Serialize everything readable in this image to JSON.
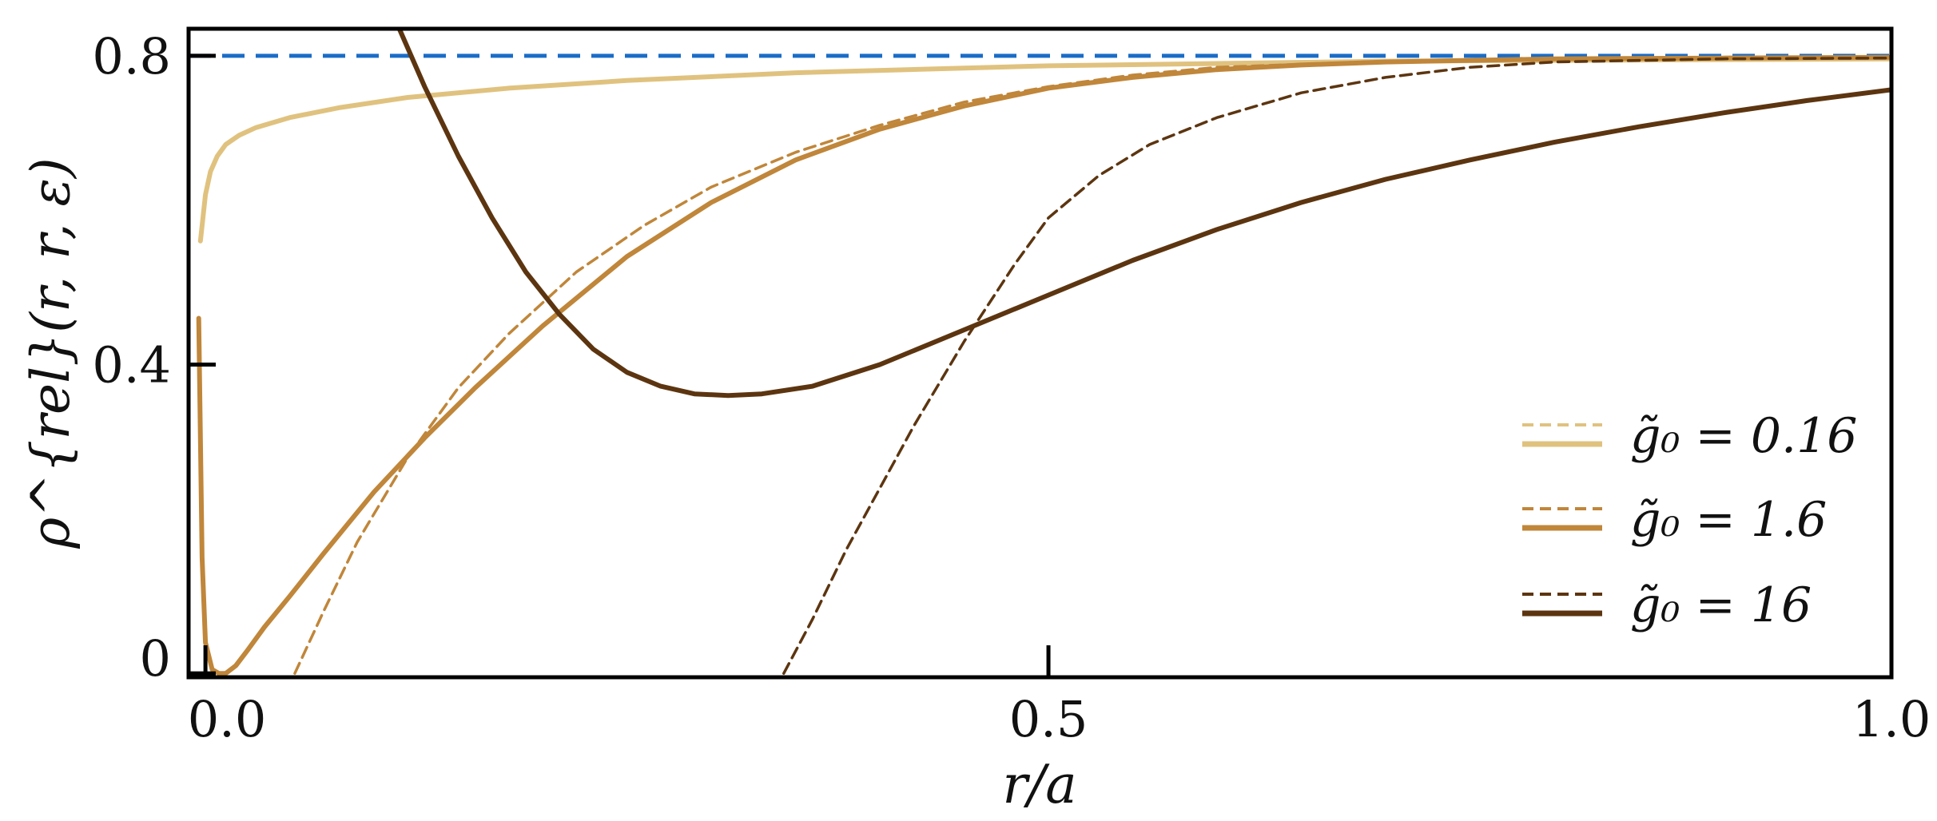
{
  "chart_data": {
    "type": "line",
    "xlabel": "r/a",
    "ylabel": "ρ^{rel}(r, r, ε)",
    "xlim": [
      -0.01,
      1.0
    ],
    "ylim": [
      -0.005,
      0.835
    ],
    "x_ticks": [
      {
        "value": 0.0,
        "label": "0.0"
      },
      {
        "value": 0.5,
        "label": "0.5"
      },
      {
        "value": 1.0,
        "label": "1.0"
      }
    ],
    "y_ticks": [
      {
        "value": 0.0,
        "label": "0"
      },
      {
        "value": 0.4,
        "label": "0.4"
      },
      {
        "value": 0.8,
        "label": "0.8"
      }
    ],
    "grid": false,
    "legend_position": "lower-right",
    "legend": [
      {
        "label": "g̃₀ = 0.16",
        "color": "#e0c27f"
      },
      {
        "label": "g̃₀ = 1.6",
        "color": "#c0863a"
      },
      {
        "label": "g̃₀ = 16",
        "color": "#5c3510"
      }
    ],
    "reference_line": {
      "y": 0.8,
      "color": "#1a6cc7",
      "style": "dashed"
    },
    "series": [
      {
        "legend_index": 0,
        "style": "dashed",
        "color": "#e0c27f",
        "x": [
          -0.003,
          0.0,
          0.003,
          0.007,
          0.012,
          0.02,
          0.03,
          0.05,
          0.08,
          0.12,
          0.18,
          0.25,
          0.35,
          0.5,
          0.7,
          1.0
        ],
        "y": [
          0.56,
          0.62,
          0.65,
          0.67,
          0.685,
          0.697,
          0.707,
          0.72,
          0.733,
          0.746,
          0.758,
          0.768,
          0.778,
          0.787,
          0.793,
          0.796
        ]
      },
      {
        "legend_index": 0,
        "style": "solid",
        "color": "#e0c27f",
        "x": [
          -0.003,
          0.0,
          0.003,
          0.007,
          0.012,
          0.02,
          0.03,
          0.05,
          0.08,
          0.12,
          0.18,
          0.25,
          0.35,
          0.5,
          0.7,
          1.0
        ],
        "y": [
          0.56,
          0.62,
          0.65,
          0.67,
          0.685,
          0.697,
          0.707,
          0.72,
          0.733,
          0.746,
          0.758,
          0.768,
          0.778,
          0.787,
          0.793,
          0.796
        ]
      },
      {
        "legend_index": 1,
        "style": "dashed",
        "color": "#c0863a",
        "x": [
          0.053,
          0.07,
          0.09,
          0.12,
          0.15,
          0.18,
          0.22,
          0.26,
          0.3,
          0.35,
          0.4,
          0.45,
          0.5,
          0.55,
          0.6,
          0.7,
          0.8,
          1.0
        ],
        "y": [
          0.0,
          0.08,
          0.17,
          0.28,
          0.37,
          0.44,
          0.52,
          0.58,
          0.63,
          0.675,
          0.71,
          0.74,
          0.76,
          0.775,
          0.785,
          0.793,
          0.796,
          0.797
        ]
      },
      {
        "legend_index": 1,
        "style": "solid",
        "color": "#c0863a",
        "x": [
          -0.004,
          -0.002,
          0.0,
          0.004,
          0.008,
          0.012,
          0.018,
          0.025,
          0.035,
          0.05,
          0.07,
          0.1,
          0.13,
          0.16,
          0.2,
          0.25,
          0.3,
          0.35,
          0.4,
          0.45,
          0.5,
          0.55,
          0.6,
          0.65,
          0.7,
          0.8,
          0.9,
          1.0
        ],
        "y": [
          0.46,
          0.15,
          0.04,
          0.005,
          0.0,
          0.0,
          0.01,
          0.03,
          0.06,
          0.1,
          0.155,
          0.235,
          0.305,
          0.37,
          0.45,
          0.54,
          0.61,
          0.665,
          0.705,
          0.735,
          0.758,
          0.772,
          0.782,
          0.788,
          0.792,
          0.796,
          0.797,
          0.798
        ]
      },
      {
        "legend_index": 2,
        "style": "dashed",
        "color": "#5c3510",
        "x": [
          0.343,
          0.36,
          0.38,
          0.4,
          0.42,
          0.45,
          0.48,
          0.5,
          0.53,
          0.56,
          0.6,
          0.65,
          0.7,
          0.75,
          0.8,
          0.9,
          1.0
        ],
        "y": [
          0.0,
          0.07,
          0.16,
          0.24,
          0.32,
          0.43,
          0.53,
          0.59,
          0.645,
          0.685,
          0.72,
          0.752,
          0.772,
          0.785,
          0.792,
          0.796,
          0.797
        ]
      },
      {
        "legend_index": 2,
        "style": "solid",
        "color": "#5c3510",
        "x": [
          0.115,
          0.13,
          0.15,
          0.17,
          0.19,
          0.21,
          0.23,
          0.25,
          0.27,
          0.29,
          0.31,
          0.33,
          0.36,
          0.4,
          0.45,
          0.5,
          0.55,
          0.6,
          0.65,
          0.7,
          0.75,
          0.8,
          0.85,
          0.9,
          0.95,
          1.0
        ],
        "y": [
          0.835,
          0.76,
          0.67,
          0.59,
          0.52,
          0.465,
          0.42,
          0.39,
          0.372,
          0.362,
          0.36,
          0.362,
          0.372,
          0.4,
          0.445,
          0.49,
          0.535,
          0.575,
          0.61,
          0.64,
          0.665,
          0.688,
          0.708,
          0.726,
          0.742,
          0.756
        ]
      }
    ]
  }
}
